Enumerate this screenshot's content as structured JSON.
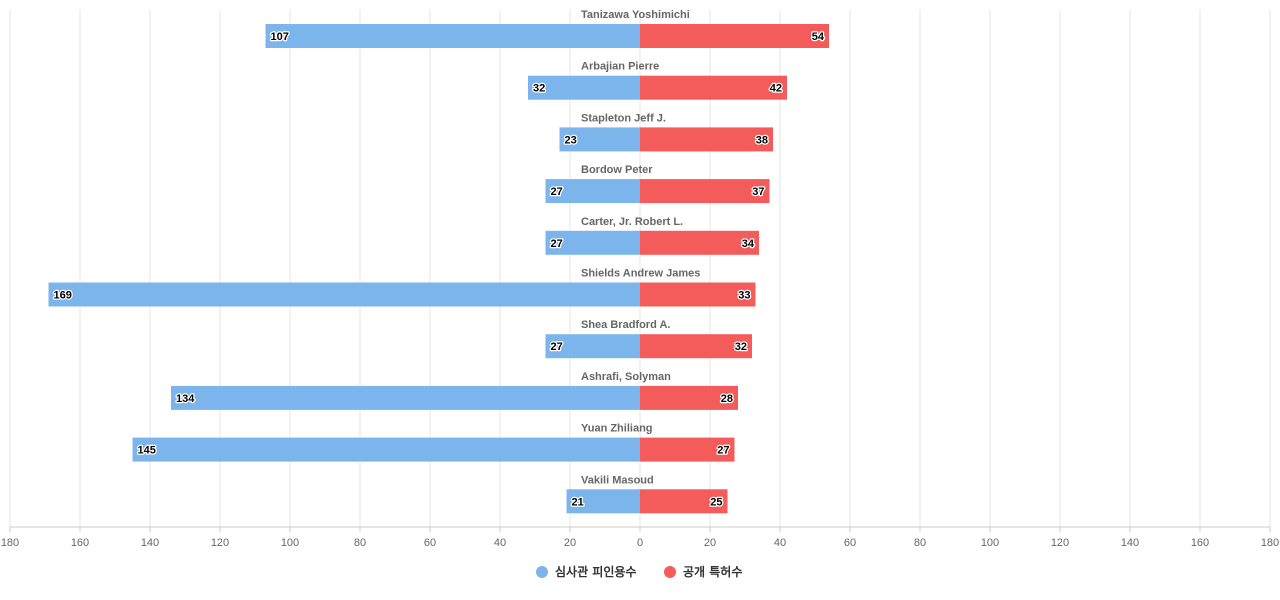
{
  "chart_data": {
    "type": "bar",
    "orientation": "horizontal-diverging",
    "title": "",
    "xlabel": "",
    "ylabel": "",
    "xlim": [
      -180,
      180
    ],
    "tick_step": 20,
    "grid": true,
    "legend_position": "bottom-center",
    "categories": [
      "Tanizawa Yoshimichi",
      "Arbajian Pierre",
      "Stapleton Jeff J.",
      "Bordow Peter",
      "Carter, Jr. Robert L.",
      "Shields Andrew James",
      "Shea Bradford A.",
      "Ashrafi, Solyman",
      "Yuan Zhiliang",
      "Vakili Masoud"
    ],
    "series": [
      {
        "name": "심사관 피인용수",
        "side": "left",
        "color": "#7cb5ec",
        "values": [
          107,
          32,
          23,
          27,
          27,
          169,
          27,
          134,
          145,
          21
        ]
      },
      {
        "name": "공개 특허수",
        "side": "right",
        "color": "#f45b5b",
        "values": [
          54,
          42,
          38,
          37,
          34,
          33,
          32,
          28,
          27,
          25
        ]
      }
    ]
  }
}
